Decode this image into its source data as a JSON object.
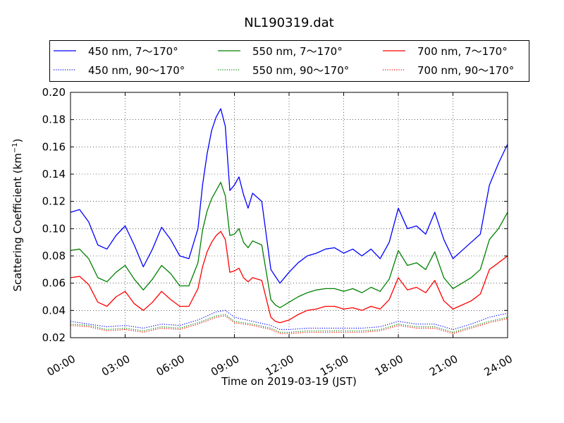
{
  "chart_data": {
    "type": "line",
    "title": "NL190319.dat",
    "xlabel": "Time on 2019-03-19 (JST)",
    "ylabel": "Scattering Coefficient (km",
    "ylabel_sup": "−1",
    "ylabel_tail": ")",
    "xlim": [
      "00:00",
      "24:00"
    ],
    "ylim": [
      0.02,
      0.2
    ],
    "x_ticks": [
      "00:00",
      "03:00",
      "06:00",
      "09:00",
      "12:00",
      "15:00",
      "18:00",
      "21:00",
      "24:00"
    ],
    "y_ticks": [
      "0.02",
      "0.04",
      "0.06",
      "0.08",
      "0.10",
      "0.12",
      "0.14",
      "0.16",
      "0.18",
      "0.20"
    ],
    "grid": true,
    "legend_position": "top, above plot, 3 columns",
    "series": [
      {
        "name": "450 nm, 7～170°",
        "color": "#0000ff",
        "style": "solid",
        "x": [
          "00:00",
          "00:30",
          "01:00",
          "01:30",
          "02:00",
          "02:30",
          "03:00",
          "03:30",
          "04:00",
          "04:30",
          "05:00",
          "05:30",
          "06:00",
          "06:30",
          "07:00",
          "07:15",
          "07:30",
          "07:45",
          "08:00",
          "08:15",
          "08:30",
          "08:45",
          "09:00",
          "09:15",
          "09:30",
          "09:45",
          "10:00",
          "10:30",
          "11:00",
          "11:15",
          "11:30",
          "12:00",
          "12:30",
          "13:00",
          "13:30",
          "14:00",
          "14:30",
          "15:00",
          "15:30",
          "16:00",
          "16:30",
          "17:00",
          "17:30",
          "18:00",
          "18:30",
          "19:00",
          "19:30",
          "20:00",
          "20:30",
          "21:00",
          "21:30",
          "22:00",
          "22:30",
          "23:00",
          "23:30",
          "24:00"
        ],
        "values": [
          0.112,
          0.114,
          0.105,
          0.088,
          0.085,
          0.095,
          0.102,
          0.088,
          0.072,
          0.085,
          0.101,
          0.092,
          0.08,
          0.078,
          0.1,
          0.132,
          0.155,
          0.172,
          0.182,
          0.188,
          0.175,
          0.128,
          0.132,
          0.138,
          0.125,
          0.115,
          0.126,
          0.12,
          0.07,
          0.065,
          0.06,
          0.068,
          0.075,
          0.08,
          0.082,
          0.085,
          0.086,
          0.082,
          0.085,
          0.08,
          0.085,
          0.078,
          0.09,
          0.115,
          0.1,
          0.102,
          0.096,
          0.112,
          0.092,
          0.078,
          0.084,
          0.09,
          0.096,
          0.132,
          0.148,
          0.162
        ]
      },
      {
        "name": "550 nm, 7～170°",
        "color": "#008000",
        "style": "solid",
        "x": [
          "00:00",
          "00:30",
          "01:00",
          "01:30",
          "02:00",
          "02:30",
          "03:00",
          "03:30",
          "04:00",
          "04:30",
          "05:00",
          "05:30",
          "06:00",
          "06:30",
          "07:00",
          "07:15",
          "07:30",
          "07:45",
          "08:00",
          "08:15",
          "08:30",
          "08:45",
          "09:00",
          "09:15",
          "09:30",
          "09:45",
          "10:00",
          "10:30",
          "11:00",
          "11:15",
          "11:30",
          "12:00",
          "12:30",
          "13:00",
          "13:30",
          "14:00",
          "14:30",
          "15:00",
          "15:30",
          "16:00",
          "16:30",
          "17:00",
          "17:30",
          "18:00",
          "18:30",
          "19:00",
          "19:30",
          "20:00",
          "20:30",
          "21:00",
          "21:30",
          "22:00",
          "22:30",
          "23:00",
          "23:30",
          "24:00"
        ],
        "values": [
          0.084,
          0.085,
          0.078,
          0.064,
          0.061,
          0.068,
          0.073,
          0.063,
          0.055,
          0.063,
          0.073,
          0.067,
          0.058,
          0.058,
          0.075,
          0.099,
          0.113,
          0.122,
          0.128,
          0.134,
          0.124,
          0.095,
          0.096,
          0.1,
          0.09,
          0.086,
          0.091,
          0.088,
          0.048,
          0.044,
          0.042,
          0.046,
          0.05,
          0.053,
          0.055,
          0.056,
          0.056,
          0.054,
          0.056,
          0.053,
          0.057,
          0.054,
          0.063,
          0.084,
          0.073,
          0.075,
          0.07,
          0.083,
          0.064,
          0.056,
          0.06,
          0.064,
          0.07,
          0.092,
          0.1,
          0.112
        ]
      },
      {
        "name": "700 nm, 7～170°",
        "color": "#ff0000",
        "style": "solid",
        "x": [
          "00:00",
          "00:30",
          "01:00",
          "01:30",
          "02:00",
          "02:30",
          "03:00",
          "03:30",
          "04:00",
          "04:30",
          "05:00",
          "05:30",
          "06:00",
          "06:30",
          "07:00",
          "07:15",
          "07:30",
          "07:45",
          "08:00",
          "08:15",
          "08:30",
          "08:45",
          "09:00",
          "09:15",
          "09:30",
          "09:45",
          "10:00",
          "10:30",
          "11:00",
          "11:15",
          "11:30",
          "12:00",
          "12:30",
          "13:00",
          "13:30",
          "14:00",
          "14:30",
          "15:00",
          "15:30",
          "16:00",
          "16:30",
          "17:00",
          "17:30",
          "18:00",
          "18:30",
          "19:00",
          "19:30",
          "20:00",
          "20:30",
          "21:00",
          "21:30",
          "22:00",
          "22:30",
          "23:00",
          "23:30",
          "24:00"
        ],
        "values": [
          0.064,
          0.065,
          0.059,
          0.046,
          0.043,
          0.05,
          0.054,
          0.045,
          0.04,
          0.046,
          0.054,
          0.048,
          0.043,
          0.043,
          0.056,
          0.072,
          0.083,
          0.09,
          0.095,
          0.098,
          0.092,
          0.068,
          0.069,
          0.071,
          0.064,
          0.061,
          0.064,
          0.062,
          0.035,
          0.032,
          0.031,
          0.033,
          0.037,
          0.04,
          0.041,
          0.043,
          0.043,
          0.041,
          0.042,
          0.04,
          0.043,
          0.041,
          0.048,
          0.064,
          0.055,
          0.057,
          0.053,
          0.062,
          0.047,
          0.041,
          0.044,
          0.047,
          0.052,
          0.07,
          0.075,
          0.08
        ]
      },
      {
        "name": "450 nm, 90～170°",
        "color": "#0000ff",
        "style": "dotted",
        "x": [
          "00:00",
          "01:00",
          "02:00",
          "03:00",
          "04:00",
          "05:00",
          "06:00",
          "07:00",
          "08:00",
          "08:30",
          "09:00",
          "10:00",
          "11:00",
          "11:30",
          "12:00",
          "13:00",
          "14:00",
          "15:00",
          "16:00",
          "17:00",
          "18:00",
          "19:00",
          "20:00",
          "21:00",
          "22:00",
          "23:00",
          "24:00"
        ],
        "values": [
          0.032,
          0.03,
          0.028,
          0.029,
          0.027,
          0.03,
          0.029,
          0.033,
          0.039,
          0.04,
          0.035,
          0.032,
          0.029,
          0.026,
          0.026,
          0.027,
          0.027,
          0.027,
          0.027,
          0.028,
          0.032,
          0.03,
          0.03,
          0.026,
          0.03,
          0.035,
          0.038
        ]
      },
      {
        "name": "550 nm, 90～170°",
        "color": "#008000",
        "style": "dotted",
        "x": [
          "00:00",
          "01:00",
          "02:00",
          "03:00",
          "04:00",
          "05:00",
          "06:00",
          "07:00",
          "08:00",
          "08:30",
          "09:00",
          "10:00",
          "11:00",
          "11:30",
          "12:00",
          "13:00",
          "14:00",
          "15:00",
          "16:00",
          "17:00",
          "18:00",
          "19:00",
          "20:00",
          "21:00",
          "22:00",
          "23:00",
          "24:00"
        ],
        "values": [
          0.03,
          0.029,
          0.026,
          0.027,
          0.025,
          0.028,
          0.027,
          0.031,
          0.036,
          0.037,
          0.032,
          0.03,
          0.027,
          0.024,
          0.024,
          0.025,
          0.025,
          0.025,
          0.025,
          0.026,
          0.03,
          0.028,
          0.028,
          0.024,
          0.028,
          0.032,
          0.035
        ]
      },
      {
        "name": "700 nm, 90～170°",
        "color": "#ff0000",
        "style": "dotted",
        "x": [
          "00:00",
          "01:00",
          "02:00",
          "03:00",
          "04:00",
          "05:00",
          "06:00",
          "07:00",
          "08:00",
          "08:30",
          "09:00",
          "10:00",
          "11:00",
          "11:30",
          "12:00",
          "13:00",
          "14:00",
          "15:00",
          "16:00",
          "17:00",
          "18:00",
          "19:00",
          "20:00",
          "21:00",
          "22:00",
          "23:00",
          "24:00"
        ],
        "values": [
          0.029,
          0.028,
          0.025,
          0.026,
          0.024,
          0.027,
          0.026,
          0.03,
          0.035,
          0.036,
          0.031,
          0.029,
          0.026,
          0.023,
          0.023,
          0.024,
          0.024,
          0.024,
          0.024,
          0.025,
          0.029,
          0.027,
          0.027,
          0.023,
          0.027,
          0.031,
          0.034
        ]
      }
    ]
  }
}
